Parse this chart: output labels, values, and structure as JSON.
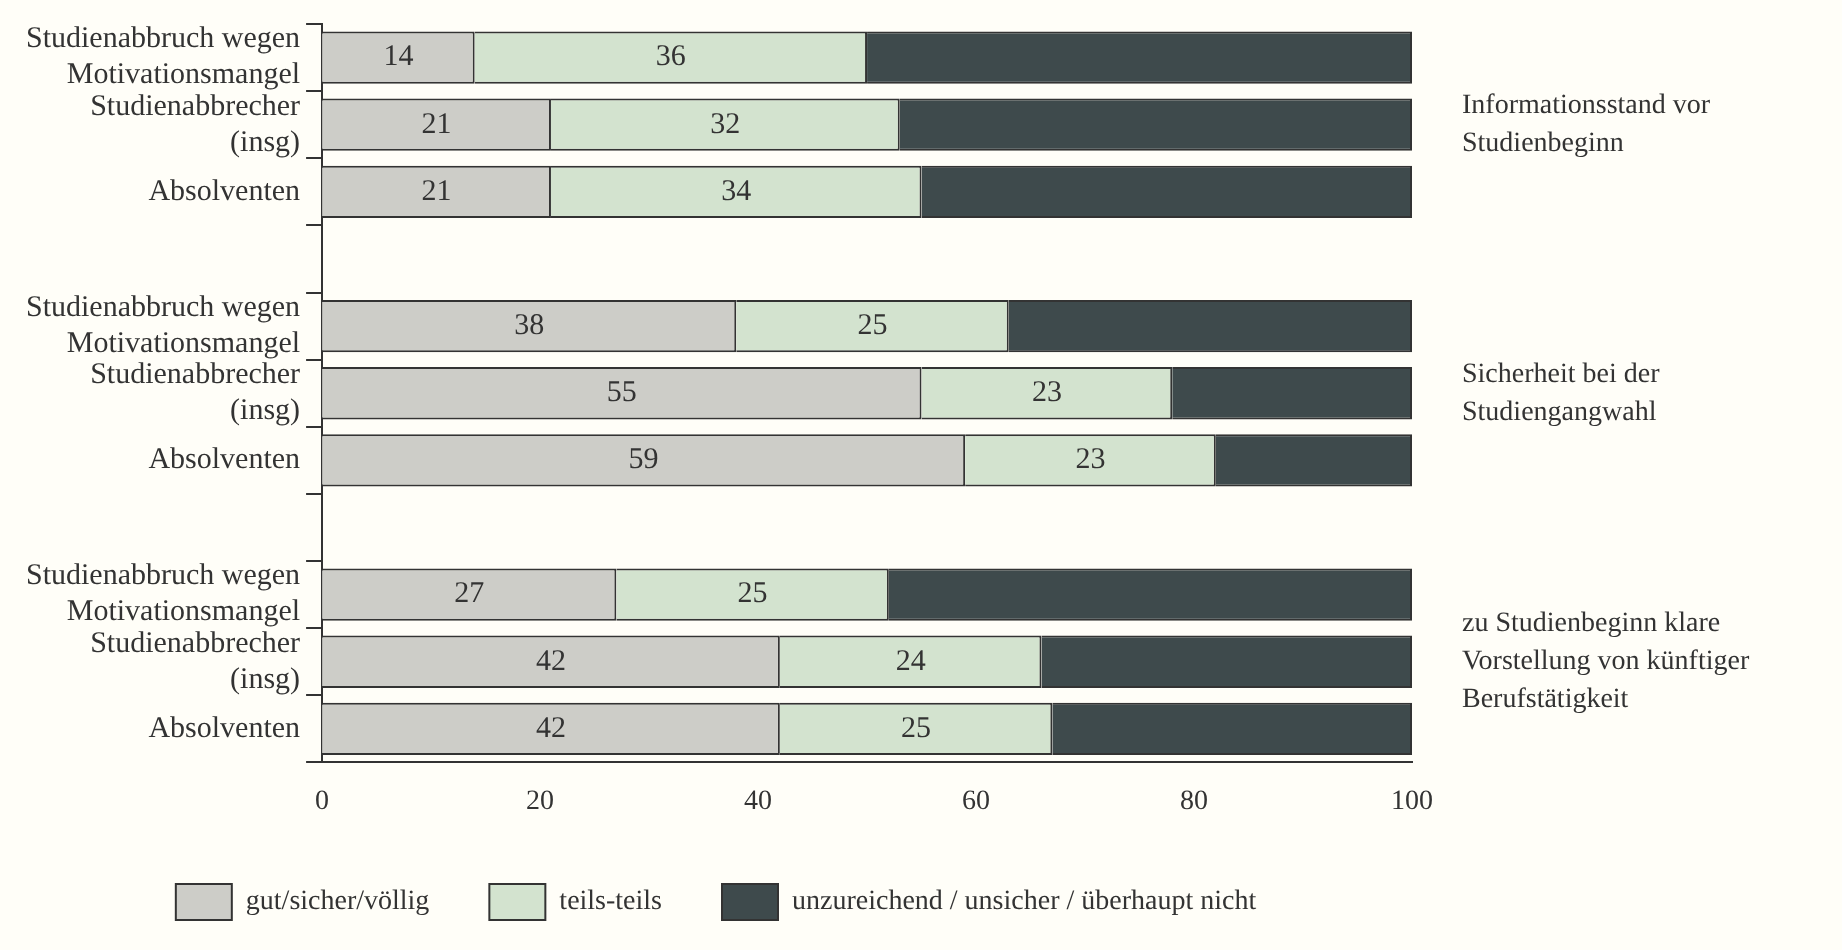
{
  "chart_data": {
    "type": "bar",
    "orientation": "horizontal",
    "stacked": true,
    "categories": [
      "Studienabbruch wegen Motivationsmangel",
      "Studienabbrecher (insg)",
      "Absolventen",
      null,
      "Studienabbruch wegen Motivationsmangel",
      "Studienabbrecher (insg)",
      "Absolventen",
      null,
      "Studienabbruch wegen Motivationsmangel",
      "Studienabbrecher (insg)",
      "Absolventen"
    ],
    "series": [
      {
        "name": "gut/sicher/völlig",
        "color": "#cdcdc8",
        "values": [
          14,
          21,
          21,
          null,
          38,
          55,
          59,
          null,
          27,
          42,
          42
        ],
        "value_labels": [
          "14",
          "21",
          "21",
          null,
          "38",
          "55",
          "59",
          null,
          "27",
          "42",
          "42"
        ]
      },
      {
        "name": "teils-teils",
        "color": "#d3e3cf",
        "values": [
          36,
          32,
          34,
          null,
          25,
          23,
          23,
          null,
          25,
          24,
          25
        ],
        "value_labels": [
          "36",
          "32",
          "34",
          null,
          "25",
          "23",
          "23",
          null,
          "25",
          "24",
          "25"
        ]
      },
      {
        "name": "unzureichend / unsicher / überhaupt nicht",
        "color": "#3e4a4c",
        "values": [
          50,
          47,
          45,
          null,
          37,
          22,
          18,
          null,
          48,
          34,
          33
        ]
      }
    ],
    "xlim": [
      0,
      100
    ],
    "xticks": [
      0,
      20,
      40,
      60,
      80,
      100
    ],
    "grid": false,
    "legend": "bottom",
    "annotations": [
      "Informationsstand vor Studienbeginn",
      "Sicherheit bei der Studiengangwahl",
      "zu Studienbeginn klare Vorstellung von künftiger Berufstätigkeit"
    ]
  }
}
